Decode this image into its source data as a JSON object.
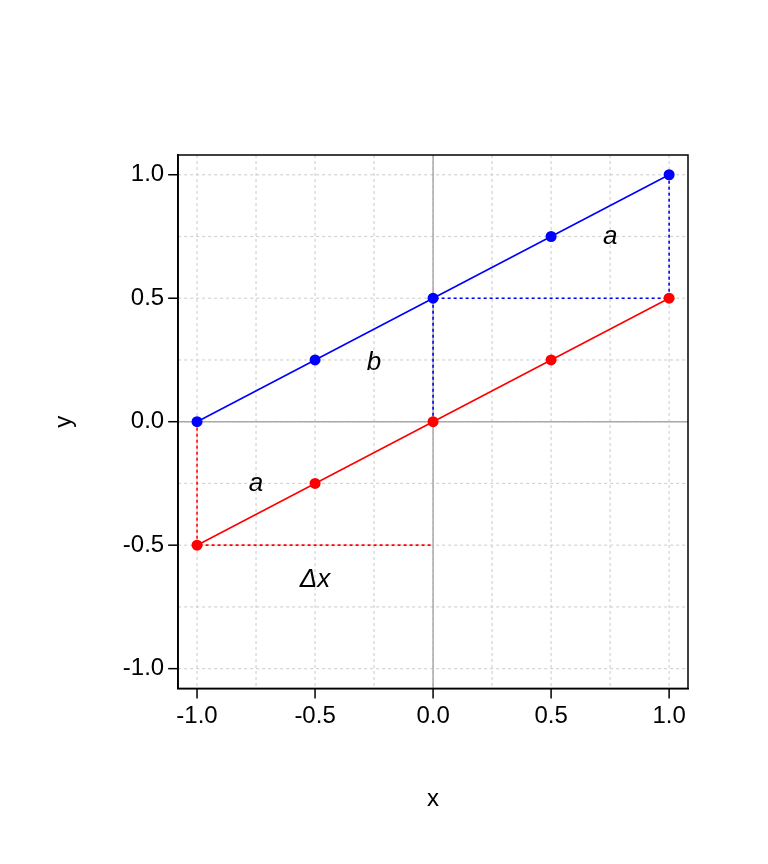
{
  "chart_data": {
    "type": "line",
    "x_label": "x",
    "y_label": "y",
    "xlim": [
      -1.08,
      1.08
    ],
    "ylim": [
      -1.08,
      1.08
    ],
    "xticks": [
      {
        "value": -1,
        "label": "-1.0"
      },
      -0.5,
      {
        "value": 0,
        "label": "0.0"
      },
      0.5,
      {
        "value": 1,
        "label": "1.0"
      }
    ],
    "yticks": [
      {
        "value": -1,
        "label": "-1.0"
      },
      -0.5,
      {
        "value": 0,
        "label": "0.0"
      },
      0.5,
      {
        "value": 1,
        "label": "1.0"
      }
    ],
    "grid": true,
    "series": [
      {
        "color": "#0000ff",
        "x": [
          -1,
          -0.5,
          0,
          0.5,
          1
        ],
        "values": [
          0,
          0.25,
          0.5,
          0.75,
          1
        ],
        "marker": "circle",
        "line_style": "solid"
      },
      {
        "color": "#ff0000",
        "x": [
          -1,
          -0.5,
          0,
          0.5,
          1
        ],
        "values": [
          -0.5,
          -0.25,
          0,
          0.25,
          0.5
        ],
        "marker": "circle",
        "line_style": "solid"
      },
      {
        "color": "#ff0000",
        "x": [
          -1,
          -1,
          0
        ],
        "values": [
          0,
          -0.5,
          -0.5
        ],
        "marker": "none",
        "line_style": "dotted"
      },
      {
        "color": "#0000ff",
        "x": [
          0,
          0,
          1,
          1
        ],
        "values": [
          0,
          0.5,
          0.5,
          1
        ],
        "marker": "none",
        "line_style": "dotted"
      }
    ],
    "annotations": [
      {
        "text": "a",
        "x": -0.75,
        "y": -0.25
      },
      {
        "text": "b",
        "x": -0.25,
        "y": 0.24
      },
      {
        "text": "a",
        "x": 0.75,
        "y": 0.75
      },
      {
        "text": "Δx",
        "x": -0.5,
        "y": -0.64
      }
    ]
  }
}
